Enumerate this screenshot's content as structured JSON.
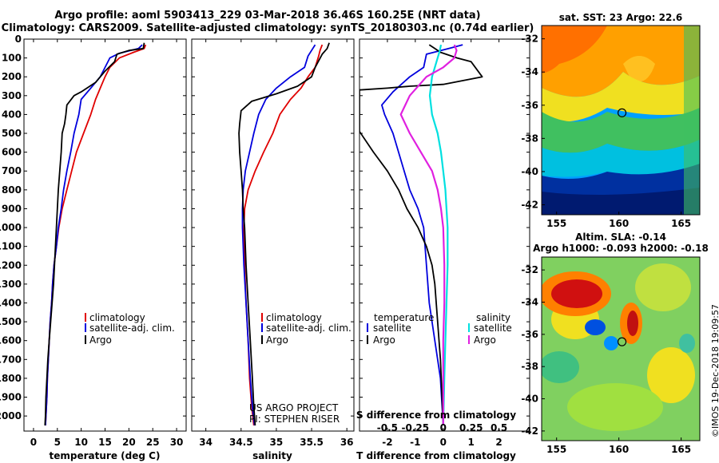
{
  "header": {
    "title_line1": "Argo profile: aoml 5903413_229 03-Mar-2018 36.46S 160.25E (NRT data)",
    "title_line2": "Climatology: CARS2009. Satellite-adjusted climatology: synTS_20180303.nc (0.74d earlier)"
  },
  "colors": {
    "climatology": "#e00000",
    "satellite": "#0000dd",
    "argo": "#000000",
    "sal_satellite": "#00e0e0",
    "sal_argo": "#e020e0"
  },
  "depth_ticks": [
    "0",
    "100",
    "200",
    "300",
    "400",
    "500",
    "600",
    "700",
    "800",
    "900",
    "1000",
    "1100",
    "1200",
    "1300",
    "1400",
    "1500",
    "1600",
    "1700",
    "1800",
    "1900",
    "2000"
  ],
  "chart_data": [
    {
      "type": "line",
      "xlabel": "temperature (deg C)",
      "ylabel": "",
      "xlim": [
        -2,
        32
      ],
      "ylim": [
        2080,
        0
      ],
      "xticks": [
        "0",
        "5",
        "10",
        "15",
        "20",
        "25",
        "30"
      ],
      "legend": [
        "climatology",
        "satellite-adj. clim.",
        "Argo"
      ],
      "legend_placement": "bottom-center",
      "series": [
        {
          "name": "climatology",
          "values": [
            [
              23.5,
              30
            ],
            [
              23.2,
              50
            ],
            [
              21,
              70
            ],
            [
              18,
              100
            ],
            [
              16,
              150
            ],
            [
              15,
              200
            ],
            [
              14,
              260
            ],
            [
              13,
              320
            ],
            [
              12,
              400
            ],
            [
              10.5,
              500
            ],
            [
              9,
              600
            ],
            [
              8,
              700
            ],
            [
              7,
              800
            ],
            [
              6,
              900
            ],
            [
              5.3,
              1000
            ],
            [
              4.8,
              1100
            ],
            [
              4.3,
              1200
            ],
            [
              4,
              1300
            ],
            [
              3.8,
              1400
            ],
            [
              3.5,
              1500
            ],
            [
              3.3,
              1600
            ],
            [
              3.1,
              1700
            ],
            [
              2.9,
              1800
            ],
            [
              2.8,
              1900
            ],
            [
              2.6,
              2000
            ],
            [
              2.5,
              2050
            ]
          ]
        },
        {
          "name": "satellite-adj. clim.",
          "values": [
            [
              22.8,
              30
            ],
            [
              22,
              50
            ],
            [
              18,
              75
            ],
            [
              16,
              100
            ],
            [
              15,
              150
            ],
            [
              14,
              200
            ],
            [
              12,
              260
            ],
            [
              10,
              320
            ],
            [
              9.5,
              400
            ],
            [
              8.5,
              500
            ],
            [
              7.8,
              600
            ],
            [
              7,
              700
            ],
            [
              6.3,
              800
            ],
            [
              5.8,
              900
            ],
            [
              5.2,
              1000
            ],
            [
              4.8,
              1100
            ],
            [
              4.3,
              1200
            ],
            [
              4,
              1300
            ],
            [
              3.8,
              1400
            ],
            [
              3.5,
              1500
            ],
            [
              3.3,
              1600
            ],
            [
              3.1,
              1700
            ],
            [
              2.9,
              1800
            ],
            [
              2.8,
              1900
            ],
            [
              2.6,
              2000
            ],
            [
              2.5,
              2050
            ]
          ]
        },
        {
          "name": "Argo",
          "values": [
            [
              23.2,
              20
            ],
            [
              23,
              50
            ],
            [
              20,
              60
            ],
            [
              17.5,
              80
            ],
            [
              17,
              120
            ],
            [
              15,
              170
            ],
            [
              13,
              230
            ],
            [
              10,
              280
            ],
            [
              8.5,
              300
            ],
            [
              7,
              350
            ],
            [
              6.8,
              400
            ],
            [
              6.5,
              450
            ],
            [
              6,
              500
            ],
            [
              5.8,
              600
            ],
            [
              5.5,
              700
            ],
            [
              5.2,
              800
            ],
            [
              5,
              900
            ],
            [
              4.8,
              1000
            ],
            [
              4.6,
              1100
            ],
            [
              4.4,
              1200
            ],
            [
              4.2,
              1300
            ],
            [
              3.9,
              1400
            ],
            [
              3.6,
              1500
            ],
            [
              3.3,
              1600
            ],
            [
              3,
              1700
            ],
            [
              2.8,
              1800
            ],
            [
              2.6,
              1900
            ],
            [
              2.5,
              2000
            ],
            [
              2.4,
              2050
            ]
          ]
        }
      ]
    },
    {
      "type": "line",
      "xlabel": "salinity",
      "ylabel": "",
      "xlim": [
        33.8,
        36.1
      ],
      "ylim": [
        2080,
        0
      ],
      "xticks": [
        "34",
        "34.5",
        "35",
        "35.5",
        "36"
      ],
      "legend": [
        "climatology",
        "satellite-adj. clim.",
        "Argo"
      ],
      "legend_placement": "bottom-center",
      "annotation": [
        "US ARGO PROJECT",
        "PI: STEPHEN RISER"
      ],
      "series": [
        {
          "name": "climatology",
          "values": [
            [
              35.65,
              30
            ],
            [
              35.62,
              60
            ],
            [
              35.6,
              90
            ],
            [
              35.55,
              150
            ],
            [
              35.45,
              200
            ],
            [
              35.35,
              260
            ],
            [
              35.2,
              320
            ],
            [
              35.05,
              400
            ],
            [
              34.95,
              500
            ],
            [
              34.82,
              600
            ],
            [
              34.7,
              700
            ],
            [
              34.6,
              800
            ],
            [
              34.55,
              900
            ],
            [
              34.54,
              1000
            ],
            [
              34.55,
              1200
            ],
            [
              34.57,
              1400
            ],
            [
              34.6,
              1600
            ],
            [
              34.62,
              1800
            ],
            [
              34.65,
              1950
            ],
            [
              34.68,
              2050
            ]
          ]
        },
        {
          "name": "satellite-adj. clim.",
          "values": [
            [
              35.55,
              30
            ],
            [
              35.5,
              60
            ],
            [
              35.45,
              90
            ],
            [
              35.4,
              150
            ],
            [
              35.2,
              200
            ],
            [
              35,
              260
            ],
            [
              34.85,
              320
            ],
            [
              34.75,
              400
            ],
            [
              34.68,
              500
            ],
            [
              34.62,
              600
            ],
            [
              34.56,
              700
            ],
            [
              34.53,
              800
            ],
            [
              34.52,
              900
            ],
            [
              34.52,
              1000
            ],
            [
              34.54,
              1200
            ],
            [
              34.57,
              1400
            ],
            [
              34.6,
              1600
            ],
            [
              34.63,
              1800
            ],
            [
              34.66,
              1950
            ],
            [
              34.69,
              2050
            ]
          ]
        },
        {
          "name": "Argo",
          "values": [
            [
              35.75,
              20
            ],
            [
              35.72,
              50
            ],
            [
              35.65,
              80
            ],
            [
              35.55,
              150
            ],
            [
              35.5,
              200
            ],
            [
              35.3,
              250
            ],
            [
              35,
              290
            ],
            [
              34.65,
              330
            ],
            [
              34.5,
              380
            ],
            [
              34.48,
              450
            ],
            [
              34.47,
              500
            ],
            [
              34.48,
              600
            ],
            [
              34.5,
              700
            ],
            [
              34.52,
              800
            ],
            [
              34.53,
              900
            ],
            [
              34.55,
              1000
            ],
            [
              34.57,
              1200
            ],
            [
              34.6,
              1400
            ],
            [
              34.63,
              1600
            ],
            [
              34.66,
              1800
            ],
            [
              34.68,
              1950
            ],
            [
              34.7,
              2050
            ]
          ]
        }
      ]
    },
    {
      "type": "line",
      "xlabel": "T difference from climatology",
      "ylabel": "",
      "xlim": [
        -3,
        3.1
      ],
      "ylim": [
        2080,
        0
      ],
      "xticks": [
        "-2",
        "-1",
        "0",
        "1",
        "2"
      ],
      "s_axis_label": "S difference from climatology",
      "s_xlim": [
        -0.75,
        0.775
      ],
      "s_xticks": [
        "-0.5",
        "-0.25",
        "0",
        "0.25",
        "0.5"
      ],
      "legend_temperature_title": "temperature",
      "legend_salinity_title": "salinity",
      "legend": [
        "satellite",
        "Argo",
        "satellite",
        "Argo"
      ],
      "legend_placement": "bottom-center",
      "series": [
        {
          "name": "satellite",
          "quantity": "temperature",
          "values": [
            [
              0.7,
              30
            ],
            [
              0.2,
              50
            ],
            [
              -0.6,
              80
            ],
            [
              -0.7,
              150
            ],
            [
              -1.2,
              200
            ],
            [
              -1.8,
              280
            ],
            [
              -2.2,
              350
            ],
            [
              -2.1,
              400
            ],
            [
              -1.8,
              500
            ],
            [
              -1.6,
              600
            ],
            [
              -1.4,
              700
            ],
            [
              -1.2,
              800
            ],
            [
              -0.9,
              900
            ],
            [
              -0.7,
              1000
            ],
            [
              -0.6,
              1200
            ],
            [
              -0.5,
              1400
            ],
            [
              -0.3,
              1600
            ],
            [
              -0.1,
              1800
            ],
            [
              0,
              2050
            ]
          ]
        },
        {
          "name": "Argo",
          "quantity": "temperature",
          "values": [
            [
              -0.5,
              30
            ],
            [
              -0.3,
              50
            ],
            [
              -0.1,
              70
            ],
            [
              0.5,
              100
            ],
            [
              1,
              120
            ],
            [
              1.4,
              200
            ],
            [
              0,
              240
            ],
            [
              -1.2,
              250
            ],
            [
              -2,
              260
            ],
            [
              -3,
              270
            ],
            [
              -3,
              280
            ],
            [
              -3,
              490
            ],
            [
              -2.5,
              600
            ],
            [
              -2,
              700
            ],
            [
              -1.6,
              800
            ],
            [
              -1.3,
              900
            ],
            [
              -0.9,
              1000
            ],
            [
              -0.6,
              1100
            ],
            [
              -0.4,
              1200
            ],
            [
              -0.3,
              1300
            ],
            [
              -0.2,
              1500
            ],
            [
              -0.1,
              1700
            ],
            [
              0,
              2050
            ]
          ]
        },
        {
          "name": "satellite",
          "quantity": "salinity",
          "values": [
            [
              -0.02,
              30
            ],
            [
              -0.03,
              60
            ],
            [
              -0.05,
              100
            ],
            [
              -0.1,
              200
            ],
            [
              -0.12,
              300
            ],
            [
              -0.1,
              400
            ],
            [
              -0.05,
              500
            ],
            [
              -0.02,
              600
            ],
            [
              0,
              700
            ],
            [
              0.02,
              800
            ],
            [
              0.03,
              900
            ],
            [
              0.04,
              1000
            ],
            [
              0.04,
              1200
            ],
            [
              0.03,
              1400
            ],
            [
              0.02,
              1600
            ],
            [
              0.01,
              1800
            ],
            [
              0,
              2050
            ]
          ]
        },
        {
          "name": "Argo",
          "quantity": "salinity",
          "values": [
            [
              0.1,
              30
            ],
            [
              0.12,
              60
            ],
            [
              0.1,
              100
            ],
            [
              0,
              150
            ],
            [
              -0.15,
              200
            ],
            [
              -0.3,
              300
            ],
            [
              -0.38,
              400
            ],
            [
              -0.3,
              500
            ],
            [
              -0.2,
              600
            ],
            [
              -0.1,
              700
            ],
            [
              -0.05,
              800
            ],
            [
              -0.02,
              900
            ],
            [
              0,
              1000
            ],
            [
              0.01,
              1200
            ],
            [
              0.01,
              1400
            ],
            [
              0,
              1600
            ],
            [
              0,
              1800
            ],
            [
              0,
              2050
            ]
          ]
        }
      ]
    },
    {
      "type": "heatmap",
      "title": "sat. SST: 23 Argo: 22.6",
      "xlim": [
        153.8,
        166.5
      ],
      "ylim": [
        -42.6,
        -31.2
      ],
      "xticks": [
        "155",
        "160",
        "165"
      ],
      "yticks": [
        "-32",
        "-34",
        "-36",
        "-38",
        "-40",
        "-42"
      ],
      "marker": [
        160.25,
        -36.46
      ],
      "colormap_stops": [
        "#002080",
        "#0040ff",
        "#00a0ff",
        "#40d080",
        "#80e040",
        "#f0e020",
        "#ffa000",
        "#ff6000"
      ]
    },
    {
      "type": "heatmap",
      "title_line1": "Altim. SLA: -0.14",
      "title_line2": "Argo h1000: -0.093 h2000: -0.18",
      "xlim": [
        153.8,
        166.5
      ],
      "ylim": [
        -42.6,
        -31.2
      ],
      "xticks": [
        "155",
        "160",
        "165"
      ],
      "yticks": [
        "-32",
        "-34",
        "-36",
        "-38",
        "-40",
        "-42"
      ],
      "marker": [
        160.25,
        -36.46
      ]
    }
  ],
  "credit": "©IMOS 19-Dec-2018 19:09:57"
}
